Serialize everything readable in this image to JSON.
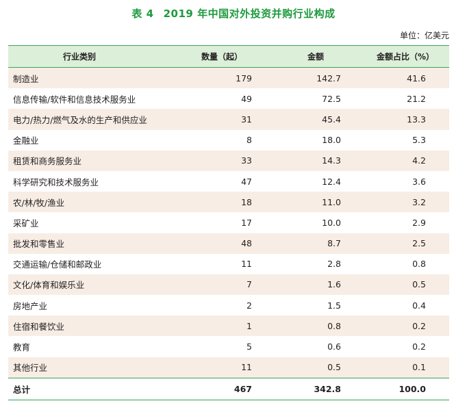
{
  "table_number": "表 4",
  "title": "2019 年中国对外投资并购行业构成",
  "unit": "单位：亿美元",
  "columns": [
    "行业类别",
    "数量（起）",
    "金额",
    "金额占比（%）"
  ],
  "rows": [
    {
      "industry": "制造业",
      "count": "179",
      "amount": "142.7",
      "share": "41.6"
    },
    {
      "industry": "信息传输/软件和信息技术服务业",
      "count": "49",
      "amount": "72.5",
      "share": "21.2"
    },
    {
      "industry": "电力/热力/燃气及水的生产和供应业",
      "count": "31",
      "amount": "45.4",
      "share": "13.3"
    },
    {
      "industry": "金融业",
      "count": "8",
      "amount": "18.0",
      "share": "5.3"
    },
    {
      "industry": "租赁和商务服务业",
      "count": "33",
      "amount": "14.3",
      "share": "4.2"
    },
    {
      "industry": "科学研究和技术服务业",
      "count": "47",
      "amount": "12.4",
      "share": "3.6"
    },
    {
      "industry": "农/林/牧/渔业",
      "count": "18",
      "amount": "11.0",
      "share": "3.2"
    },
    {
      "industry": "采矿业",
      "count": "17",
      "amount": "10.0",
      "share": "2.9"
    },
    {
      "industry": "批发和零售业",
      "count": "48",
      "amount": "8.7",
      "share": "2.5"
    },
    {
      "industry": "交通运输/仓储和邮政业",
      "count": "11",
      "amount": "2.8",
      "share": "0.8"
    },
    {
      "industry": "文化/体育和娱乐业",
      "count": "7",
      "amount": "1.6",
      "share": "0.5"
    },
    {
      "industry": "房地产业",
      "count": "2",
      "amount": "1.5",
      "share": "0.4"
    },
    {
      "industry": "住宿和餐饮业",
      "count": "1",
      "amount": "0.8",
      "share": "0.2"
    },
    {
      "industry": "教育",
      "count": "5",
      "amount": "0.6",
      "share": "0.2"
    },
    {
      "industry": "其他行业",
      "count": "11",
      "amount": "0.5",
      "share": "0.1"
    }
  ],
  "total": {
    "industry": "总计",
    "count": "467",
    "amount": "342.8",
    "share": "100.0"
  },
  "colors": {
    "title": "#1e9a3e",
    "header_bg": "#dcefd9",
    "row_shade": "#f7ede4",
    "rule": "#3aa35a"
  }
}
